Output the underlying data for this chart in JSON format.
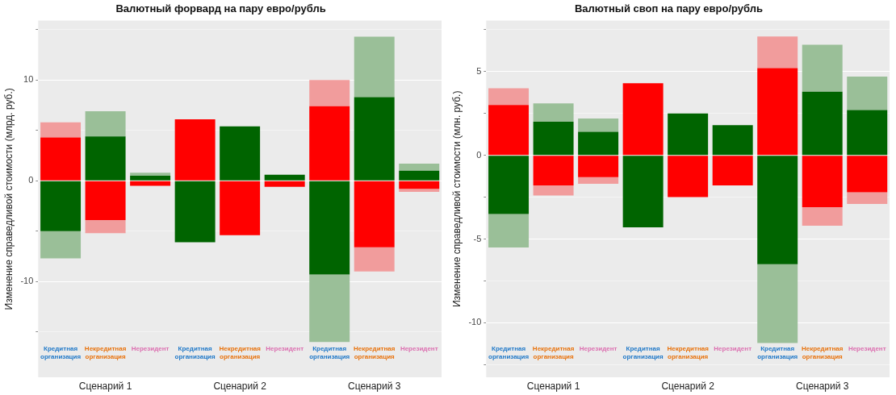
{
  "chart_data": [
    {
      "type": "bar",
      "title": "Валютный форвард на пару евро/рубль",
      "ylabel": "Изменение справедливой стоимости (млрд. руб.)",
      "categories": [
        "Кредитная организация",
        "Некредитная организация",
        "Нерезидент",
        "Кредитная организация",
        "Некредитная организация",
        "Нерезидент",
        "Кредитная организация",
        "Некредитная организация",
        "Нерезидент"
      ],
      "stacked": true,
      "grid": "y",
      "legend": false,
      "ylim": [
        -19.5,
        15.9
      ],
      "yticks": [
        {
          "value": -15,
          "label": null
        },
        -10,
        {
          "value": -5,
          "label": null
        },
        0,
        {
          "value": 5,
          "label": null
        },
        10,
        {
          "value": 15,
          "label": null
        }
      ],
      "series": [
        {
          "colors": [
            "#ff0000",
            "#006400",
            "#006400",
            "#ff0000",
            "#006400",
            "#006400",
            "#ff0000",
            "#006400",
            "#006400"
          ],
          "values": [
            4.3,
            4.4,
            0.5,
            6.1,
            5.4,
            0.6,
            7.4,
            8.3,
            1.0
          ]
        },
        {
          "colors": [
            "#006400",
            "#ff0000",
            "#ff0000",
            "#006400",
            "#ff0000",
            "#ff0000",
            "#006400",
            "#ff0000",
            "#ff0000"
          ],
          "values": [
            -5.0,
            -3.9,
            -0.5,
            -6.1,
            -5.4,
            -0.6,
            -9.3,
            -6.6,
            -0.8
          ]
        },
        {
          "colors": [
            "#f19c9c",
            "#9abf98",
            "#9abf98",
            "#f19c9c",
            "#9abf98",
            "#9abf98",
            "#f19c9c",
            "#9abf98",
            "#9abf98"
          ],
          "values": [
            1.5,
            2.5,
            0.3,
            null,
            null,
            null,
            2.6,
            6.0,
            0.7
          ]
        },
        {
          "colors": [
            "#9abf98",
            "#f19c9c",
            "#f19c9c",
            "#9abf98",
            "#f19c9c",
            "#f19c9c",
            "#9abf98",
            "#f19c9c",
            "#f19c9c"
          ],
          "values": [
            -2.7,
            -1.3,
            null,
            null,
            null,
            null,
            -6.7,
            -2.4,
            -0.3
          ]
        }
      ],
      "annotations": [
        "Сценарий 1",
        "Сценарий 2",
        "Сценарий 3"
      ]
    },
    {
      "type": "bar",
      "title": "Валютный своп на пару евро/рубль",
      "ylabel": "Изменение справедливой стоимости (млн. руб.)",
      "categories": [
        "Кредитная организация",
        "Некредитная организация",
        "Нерезидент",
        "Кредитная организация",
        "Некредитная организация",
        "Нерезидент",
        "Кредитная организация",
        "Некредитная организация",
        "Нерезидент"
      ],
      "stacked": true,
      "grid": "y",
      "legend": false,
      "ylim": [
        -13.25,
        8.04
      ],
      "yticks": [
        {
          "value": -12.5,
          "label": null
        },
        -10,
        {
          "value": -7.5,
          "label": null
        },
        -5,
        {
          "value": -2.5,
          "label": null
        },
        0,
        {
          "value": 2.5,
          "label": null
        },
        5,
        {
          "value": 7.5,
          "label": null
        }
      ],
      "series": [
        {
          "colors": [
            "#ff0000",
            "#006400",
            "#006400",
            "#ff0000",
            "#006400",
            "#006400",
            "#ff0000",
            "#006400",
            "#006400"
          ],
          "values": [
            3.0,
            2.0,
            1.4,
            4.3,
            2.5,
            1.8,
            5.2,
            3.8,
            2.7
          ]
        },
        {
          "colors": [
            "#006400",
            "#ff0000",
            "#ff0000",
            "#006400",
            "#ff0000",
            "#ff0000",
            "#006400",
            "#ff0000",
            "#ff0000"
          ],
          "values": [
            -3.5,
            -1.8,
            -1.3,
            -4.3,
            -2.5,
            -1.8,
            -6.5,
            -3.1,
            -2.2
          ]
        },
        {
          "colors": [
            "#f19c9c",
            "#9abf98",
            "#9abf98",
            "#f19c9c",
            "#9abf98",
            "#9abf98",
            "#f19c9c",
            "#9abf98",
            "#9abf98"
          ],
          "values": [
            1.0,
            1.1,
            0.8,
            null,
            null,
            null,
            1.9,
            2.8,
            2.0
          ]
        },
        {
          "colors": [
            "#9abf98",
            "#f19c9c",
            "#f19c9c",
            "#9abf98",
            "#f19c9c",
            "#f19c9c",
            "#9abf98",
            "#f19c9c",
            "#f19c9c"
          ],
          "values": [
            -2.0,
            -0.6,
            -0.4,
            null,
            null,
            null,
            -4.7,
            -1.1,
            -0.7
          ]
        }
      ],
      "annotations": [
        "Сценарий 1",
        "Сценарий 2",
        "Сценарий 3"
      ]
    }
  ]
}
